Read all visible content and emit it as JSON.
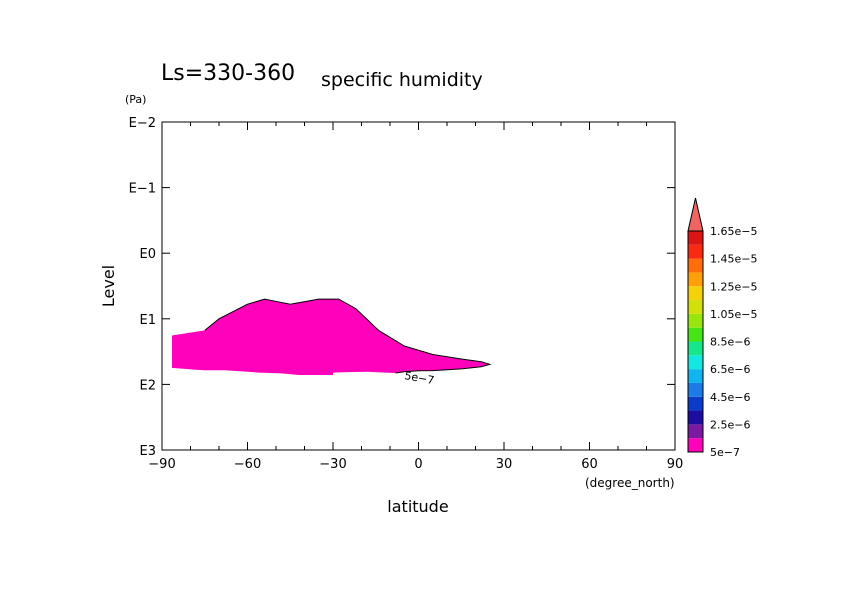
{
  "chart_data": {
    "type": "contour",
    "title_main": "Ls=330-360",
    "title_sub": "specific humidity",
    "xlabel": "latitude",
    "xunit": "(degree_north)",
    "ylabel": "Level",
    "yunit": "(Pa)",
    "xlim": [
      -90,
      90
    ],
    "ylim": [
      1000,
      0.01
    ],
    "yscale": "log",
    "x_ticks": [
      {
        "value": -90,
        "label": "−90"
      },
      {
        "value": -60,
        "label": "−60"
      },
      {
        "value": -30,
        "label": "−30"
      },
      {
        "value": 0,
        "label": "0"
      },
      {
        "value": 30,
        "label": "30"
      },
      {
        "value": 60,
        "label": "60"
      },
      {
        "value": 90,
        "label": "90"
      }
    ],
    "y_ticks": [
      {
        "value": 0.01,
        "label": "E−2"
      },
      {
        "value": 0.1,
        "label": "E−1"
      },
      {
        "value": 1,
        "label": "E0"
      },
      {
        "value": 10,
        "label": "E1"
      },
      {
        "value": 100,
        "label": "E2"
      },
      {
        "value": 1000,
        "label": "E3"
      }
    ],
    "contour_label": "5e−7",
    "colorbar": {
      "labels": [
        "5e−7",
        "2.5e−6",
        "4.5e−6",
        "6.5e−6",
        "8.5e−6",
        "1.05e−5",
        "1.25e−5",
        "1.45e−5",
        "1.65e−5"
      ],
      "colors": [
        "#ff00bb",
        "#7a1aa0",
        "#1c0ca0",
        "#0a3cc8",
        "#1b7ce8",
        "#12b4f0",
        "#12e8e0",
        "#18e68c",
        "#46e616",
        "#98e60e",
        "#d2e00a",
        "#f4d20a",
        "#ffa00a",
        "#ff6e0a",
        "#fa2a12",
        "#dc1414"
      ],
      "arrow_color": "#f06464"
    },
    "region": {
      "value_min": 5e-07,
      "color": "#ff00bb",
      "outline": [
        [
          -86.5,
          174
        ],
        [
          -86.5,
          18
        ],
        [
          -75,
          15
        ],
        [
          -70,
          10
        ],
        [
          -60,
          6
        ],
        [
          -54,
          5
        ],
        [
          -45,
          6
        ],
        [
          -35,
          5
        ],
        [
          -28,
          5
        ],
        [
          -22,
          7
        ],
        [
          -14,
          15
        ],
        [
          -5,
          26
        ],
        [
          5,
          35
        ],
        [
          15,
          41
        ],
        [
          22,
          45
        ],
        [
          25,
          49.5
        ],
        [
          22,
          54
        ],
        [
          15,
          58
        ],
        [
          5,
          61.5
        ],
        [
          0,
          62
        ],
        [
          -5,
          64
        ],
        [
          -8,
          67
        ],
        [
          -12,
          66
        ],
        [
          -18,
          64
        ],
        [
          -25,
          65
        ],
        [
          -30,
          66
        ],
        [
          -30,
          66
        ],
        [
          -30,
          72
        ],
        [
          -42,
          72
        ],
        [
          -42,
          72
        ],
        [
          -48,
          68
        ],
        [
          -56,
          66
        ],
        [
          -60,
          64
        ],
        [
          -68,
          61
        ],
        [
          -70,
          61
        ],
        [
          -75,
          61
        ],
        [
          -78,
          60
        ],
        [
          -86.5,
          56
        ],
        [
          -86.5,
          174
        ]
      ]
    }
  }
}
